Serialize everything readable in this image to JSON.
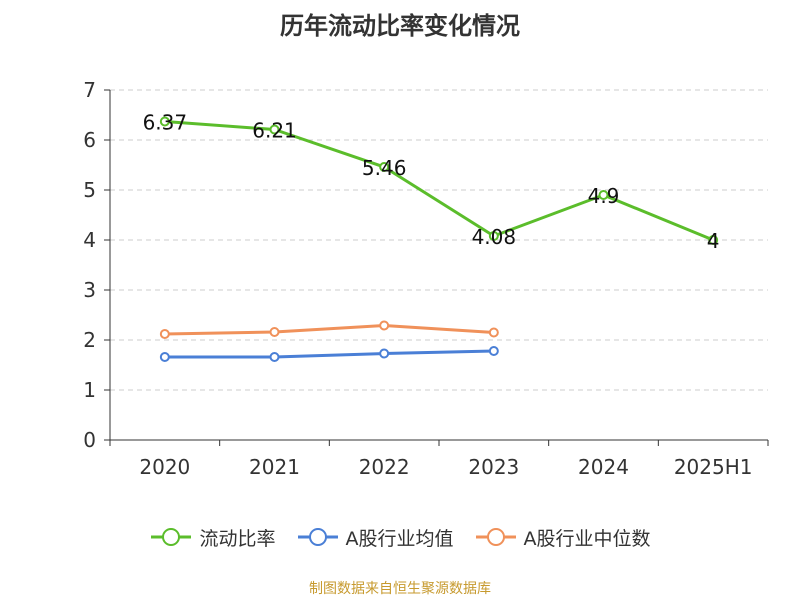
{
  "title": "历年流动比率变化情况",
  "source": "制图数据来自恒生聚源数据库",
  "chart_data": {
    "type": "line",
    "title": "历年流动比率变化情况",
    "categories": [
      "2020",
      "2021",
      "2022",
      "2023",
      "2024",
      "2025H1"
    ],
    "ylim": [
      0,
      7
    ],
    "yticks": [
      0,
      1,
      2,
      3,
      4,
      5,
      6,
      7
    ],
    "grid": true,
    "legend_position": "bottom",
    "series": [
      {
        "name": "流动比率",
        "color": "#5bbd2b",
        "values": [
          6.37,
          6.21,
          5.46,
          4.08,
          4.9,
          4
        ],
        "labels": [
          "6.37",
          "6.21",
          "5.46",
          "4.08",
          "4.9",
          "4"
        ]
      },
      {
        "name": "A股行业均值",
        "color": "#4a7fd6",
        "values": [
          1.66,
          1.66,
          1.73,
          1.78,
          null,
          null
        ]
      },
      {
        "name": "A股行业中位数",
        "color": "#f0915a",
        "values": [
          2.12,
          2.16,
          2.29,
          2.15,
          null,
          null
        ]
      }
    ]
  }
}
